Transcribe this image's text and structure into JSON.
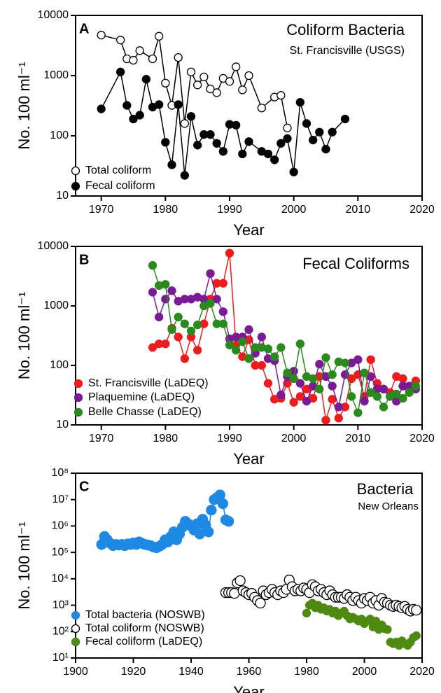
{
  "chart_data": [
    {
      "type": "line",
      "label": "A",
      "title": "Coliform Bacteria",
      "subtitle": "St. Francisville (USGS)",
      "xlabel": "Year",
      "ylabel": "No. 100 ml⁻¹",
      "xlim": [
        1966,
        2020
      ],
      "xticks": [
        1970,
        1980,
        1990,
        2000,
        2010,
        2020
      ],
      "ylim": [
        10,
        10000
      ],
      "yticks": [
        10,
        100,
        1000,
        10000
      ],
      "log_y": true,
      "series": [
        {
          "name": "Total coliform",
          "color": "#000000",
          "fill": "#ffffff",
          "line": true,
          "x": [
            1970,
            1973,
            1974,
            1975,
            1976,
            1978,
            1979,
            1980,
            1981,
            1982,
            1983,
            1984,
            1985,
            1986,
            1987,
            1988,
            1989,
            1990,
            1991,
            1992,
            1993,
            1995,
            1997,
            1998,
            1999
          ],
          "values": [
            4700,
            3900,
            1900,
            1800,
            2600,
            1900,
            4500,
            750,
            320,
            2000,
            160,
            1150,
            700,
            950,
            600,
            520,
            900,
            800,
            1400,
            580,
            1000,
            290,
            440,
            470,
            135
          ]
        },
        {
          "name": "Fecal coliform",
          "color": "#000000",
          "fill": "#000000",
          "line": true,
          "x": [
            1970,
            1973,
            1974,
            1975,
            1976,
            1977,
            1978,
            1979,
            1980,
            1981,
            1982,
            1983,
            1984,
            1985,
            1986,
            1987,
            1988,
            1989,
            1990,
            1991,
            1992,
            1993,
            1995,
            1996,
            1997,
            1998,
            1999,
            2000,
            2001,
            2002,
            2003,
            2004,
            2005,
            2006,
            2008
          ],
          "values": [
            280,
            1150,
            320,
            190,
            220,
            870,
            300,
            330,
            78,
            33,
            330,
            22,
            210,
            70,
            105,
            105,
            75,
            55,
            155,
            150,
            50,
            80,
            55,
            50,
            40,
            75,
            90,
            25,
            360,
            160,
            85,
            115,
            60,
            115,
            190
          ]
        }
      ]
    },
    {
      "type": "line",
      "label": "B",
      "title": "Fecal Coliforms",
      "xlabel": "Year",
      "ylabel": "No. 100 ml⁻¹",
      "xlim": [
        1966,
        2020
      ],
      "xticks": [
        1970,
        1980,
        1990,
        2000,
        2010,
        2020
      ],
      "ylim": [
        10,
        10000
      ],
      "yticks": [
        10,
        100,
        1000,
        10000
      ],
      "log_y": true,
      "x": [
        1978,
        1979,
        1980,
        1981,
        1982,
        1983,
        1984,
        1985,
        1986,
        1987,
        1988,
        1989,
        1990,
        1991,
        1992,
        1993,
        1994,
        1995,
        1996,
        1997,
        1998,
        1999,
        2000,
        2001,
        2002,
        2003,
        2004,
        2005,
        2006,
        2007,
        2008,
        2009,
        2010,
        2011,
        2012,
        2013,
        2014,
        2015,
        2016,
        2017,
        2018,
        2019
      ],
      "series": [
        {
          "name": "St. Francisville (LaDEQ)",
          "color": "#ee1c1c",
          "fill": "#ee1c1c",
          "line": true,
          "values": [
            200,
            230,
            230,
            420,
            300,
            130,
            300,
            180,
            500,
            1300,
            2400,
            2400,
            7700,
            220,
            140,
            270,
            100,
            100,
            50,
            27,
            28,
            50,
            24,
            30,
            40,
            28,
            65,
            12,
            27,
            13,
            20,
            60,
            70,
            30,
            125,
            50,
            40,
            35,
            65,
            60,
            40,
            55
          ]
        },
        {
          "name": "Plaquemine (LaDEQ)",
          "color": "#7a1a96",
          "fill": "#7a1a96",
          "line": true,
          "values": [
            1700,
            650,
            1300,
            1800,
            1200,
            1300,
            1300,
            1400,
            1300,
            3500,
            1300,
            800,
            280,
            300,
            300,
            400,
            160,
            300,
            130,
            120,
            32,
            65,
            80,
            50,
            25,
            45,
            105,
            65,
            45,
            20,
            70,
            110,
            125,
            25,
            65,
            40,
            40,
            30,
            25,
            45,
            45,
            40
          ]
        },
        {
          "name": "Belle Chasse (LaDEQ)",
          "color": "#2a8a1e",
          "fill": "#2a8a1e",
          "line": true,
          "values": [
            4800,
            2200,
            2300,
            400,
            650,
            500,
            380,
            480,
            1000,
            1100,
            500,
            500,
            220,
            180,
            250,
            130,
            200,
            200,
            190,
            140,
            200,
            75,
            60,
            230,
            65,
            60,
            40,
            135,
            70,
            115,
            110,
            30,
            16,
            75,
            35,
            30,
            20,
            30,
            33,
            28,
            35,
            45
          ]
        }
      ]
    },
    {
      "type": "line",
      "label": "C",
      "title": "Bacteria",
      "subtitle": "New Orleans",
      "xlabel": "Year",
      "ylabel": "No. 100 ml⁻¹",
      "xlim": [
        1900,
        2020
      ],
      "xticks": [
        1900,
        1920,
        1940,
        1960,
        1980,
        2000,
        2020
      ],
      "ylim": [
        10,
        100000000
      ],
      "yticks": [
        {
          "value": 10,
          "label": "10¹"
        },
        {
          "value": 100,
          "label": "10²"
        },
        {
          "value": 1000,
          "label": "10³"
        },
        {
          "value": 10000,
          "label": "10⁴"
        },
        {
          "value": 100000,
          "label": "10⁵"
        },
        {
          "value": 1000000,
          "label": "10⁶"
        },
        {
          "value": 10000000,
          "label": "10⁷"
        },
        {
          "value": 100000000,
          "label": "10⁸"
        }
      ],
      "log_y": true,
      "series": [
        {
          "name": "Total bacteria (NOSWB)",
          "color": "#1e88e5",
          "fill": "#1e88e5",
          "line": true,
          "x": [
            1909,
            1910,
            1911,
            1912,
            1913,
            1914,
            1915,
            1916,
            1917,
            1918,
            1919,
            1920,
            1921,
            1922,
            1923,
            1924,
            1925,
            1926,
            1927,
            1928,
            1929,
            1930,
            1931,
            1932,
            1933,
            1934,
            1935,
            1936,
            1937,
            1938,
            1939,
            1940,
            1941,
            1942,
            1943,
            1944,
            1945,
            1946,
            1947,
            1948,
            1949,
            1950,
            1951,
            1952,
            1953
          ],
          "values": [
            200000,
            400000,
            300000,
            220000,
            180000,
            200000,
            190000,
            200000,
            180000,
            210000,
            200000,
            230000,
            200000,
            250000,
            220000,
            200000,
            190000,
            180000,
            160000,
            150000,
            170000,
            200000,
            300000,
            250000,
            400000,
            600000,
            300000,
            500000,
            900000,
            1500000,
            1200000,
            1000000,
            700000,
            1200000,
            500000,
            1800000,
            1100000,
            600000,
            4000000,
            10000000,
            12000000,
            15000000,
            7000000,
            1700000,
            1500000
          ]
        },
        {
          "name": "Total coliform (NOSWB)",
          "color": "#000000",
          "fill": "#ffffff",
          "line": false,
          "x": [
            1952,
            1953,
            1954,
            1955,
            1956,
            1957,
            1958,
            1959,
            1960,
            1961,
            1962,
            1963,
            1964,
            1965,
            1966,
            1967,
            1968,
            1969,
            1970,
            1971,
            1972,
            1973,
            1974,
            1975,
            1976,
            1977,
            1978,
            1979,
            1980,
            1981,
            1982,
            1983,
            1984,
            1985,
            1986,
            1987,
            1988,
            1989,
            1990,
            1991,
            1992,
            1993,
            1994,
            1995,
            1996,
            1997,
            1998,
            1999,
            2000,
            2001,
            2002,
            2003,
            2004,
            2005,
            2006,
            2007,
            2008,
            2009,
            2010,
            2011,
            2012,
            2013,
            2014,
            2015,
            2016,
            2017,
            2018
          ],
          "values": [
            3000,
            3000,
            3000,
            2800,
            7000,
            8500,
            3500,
            3000,
            2500,
            2800,
            2000,
            1500,
            1200,
            3500,
            2500,
            3000,
            4000,
            3000,
            2500,
            3500,
            3000,
            4000,
            9000,
            5000,
            3500,
            4000,
            3500,
            4500,
            4000,
            3000,
            6000,
            5000,
            3500,
            4000,
            3000,
            2500,
            3500,
            2500,
            2000,
            2000,
            2000,
            1800,
            2500,
            2000,
            1500,
            2000,
            1500,
            1200,
            1800,
            1500,
            2000,
            1200,
            1500,
            1000,
            1800,
            1300,
            1200,
            1000,
            900,
            1000,
            900,
            800,
            900,
            700,
            600,
            700,
            650
          ]
        },
        {
          "name": "Fecal coliform (LaDEQ)",
          "color": "#4e8a12",
          "fill": "#4e8a12",
          "line": false,
          "x": [
            1980,
            1981,
            1982,
            1983,
            1984,
            1985,
            1986,
            1987,
            1988,
            1989,
            1990,
            1991,
            1992,
            1993,
            1994,
            1995,
            1996,
            1997,
            1998,
            1999,
            2000,
            2001,
            2002,
            2003,
            2004,
            2005,
            2006,
            2007,
            2008,
            2009,
            2010,
            2011,
            2012,
            2013,
            2014,
            2015,
            2016,
            2017,
            2018
          ],
          "values": [
            500,
            1000,
            1200,
            800,
            1000,
            700,
            800,
            600,
            700,
            500,
            600,
            400,
            500,
            600,
            400,
            300,
            350,
            300,
            250,
            300,
            200,
            250,
            300,
            150,
            250,
            120,
            180,
            130,
            120,
            40,
            35,
            40,
            30,
            45,
            35,
            30,
            40,
            60,
            70
          ]
        }
      ]
    }
  ]
}
